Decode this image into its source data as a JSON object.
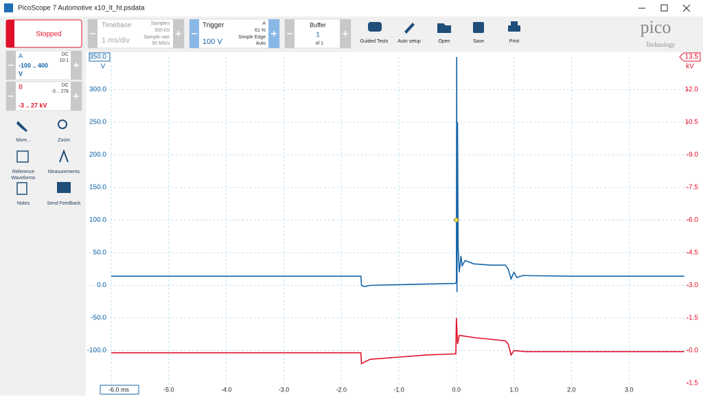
{
  "window": {
    "title": "PicoScope 7 Automotive x10_lt_ht.psdata"
  },
  "toolbar": {
    "status": "Stopped",
    "timebase": {
      "label": "Timebase",
      "value": "1 ms/div",
      "samples_label": "Samples",
      "samples": "500 kS",
      "rate_label": "Sample rate",
      "rate": "50 MS/s"
    },
    "trigger": {
      "label": "Trigger",
      "level": "100 V",
      "channel": "A",
      "position": "61 %",
      "type": "Simple Edge",
      "mode": "Auto"
    },
    "buffer": {
      "label": "Buffer",
      "current": "1",
      "total": "of 1"
    },
    "buttons": [
      "Guided Tests",
      "Auto setup",
      "Open",
      "Save",
      "Print"
    ],
    "logo": {
      "name": "pico",
      "tagline": "Technology"
    }
  },
  "channels": [
    {
      "name": "A",
      "coupling": "DC",
      "probe": "10:1",
      "range": "-100 .. 400",
      "unit": "V"
    },
    {
      "name": "B",
      "coupling": "DC",
      "probe": "-3 .. 27k",
      "range": "-3 .. 27 kV"
    }
  ],
  "tools": [
    [
      "More..."
    ],
    [
      "Zoom"
    ],
    [
      "Reference",
      "Waveforms"
    ],
    [
      "Measurements"
    ],
    [
      "Notes"
    ],
    [
      "Send Feedback"
    ]
  ],
  "chart_data": {
    "type": "line",
    "xlim": [
      -6,
      4
    ],
    "xticks": [
      {
        "value": -6,
        "label": "-6.0 ms"
      },
      {
        "value": -5,
        "label": "-5.0"
      },
      {
        "value": -4,
        "label": "-4.0"
      },
      {
        "value": -3,
        "label": "-3.0"
      },
      {
        "value": -2,
        "label": "-2.0"
      },
      {
        "value": -1,
        "label": "-1.0"
      },
      {
        "value": 0,
        "label": "0.0"
      },
      {
        "value": 1,
        "label": "1.0"
      },
      {
        "value": 2,
        "label": "2.0"
      },
      {
        "value": 3,
        "label": "3.0"
      }
    ],
    "ylabel": "V",
    "ylim": [
      -150,
      350
    ],
    "yticks": [
      {
        "value": -100,
        "label": "-100.0"
      },
      {
        "value": -50,
        "label": "-50.0"
      },
      {
        "value": 0,
        "label": "0.0"
      },
      {
        "value": 50,
        "label": "50.0"
      },
      {
        "value": 100,
        "label": "100.0"
      },
      {
        "value": 150,
        "label": "150.0"
      },
      {
        "value": 200,
        "label": "200.0"
      },
      {
        "value": 250,
        "label": "250.0"
      },
      {
        "value": 300,
        "label": "300.0"
      },
      {
        "value": 350,
        "label": "350.0"
      }
    ],
    "y2label": "kV",
    "y2lim": [
      -1.5,
      13.5
    ],
    "y2ticks": [
      -1.5,
      {
        "value": 0,
        "label": "0.0"
      },
      1.5,
      {
        "value": 3,
        "label": "3.0"
      },
      4.5,
      {
        "value": 6,
        "label": "6.0"
      },
      7.5,
      {
        "value": 9,
        "label": "9.0"
      },
      10.5,
      {
        "value": 12,
        "label": "12.0"
      },
      13.5
    ],
    "grid": true,
    "trigger_point": {
      "x": 0,
      "y": 100,
      "color": "#f5e23a"
    },
    "series": [
      {
        "color": "#1565a8",
        "x": [
          -6,
          -1.66,
          -1.65,
          -1.6,
          -1.5,
          -1.0,
          -0.5,
          -0.02,
          0,
          0.005,
          0.01,
          0.02,
          0.03,
          0.05,
          0.08,
          0.1,
          0.15,
          0.3,
          0.6,
          0.85,
          0.9,
          0.95,
          1.0,
          1.05,
          1.15,
          2,
          3.96
        ],
        "values": [
          14,
          14,
          0,
          -2,
          0,
          1,
          2,
          3,
          5,
          350,
          -10,
          250,
          60,
          20,
          45,
          30,
          38,
          33,
          31,
          31,
          25,
          10,
          20,
          12,
          15,
          14,
          14
        ]
      },
      {
        "color": "#e0102a",
        "axis": "y2",
        "x": [
          -6,
          -1.66,
          -1.65,
          -1.5,
          -1.0,
          -0.5,
          -0.01,
          0,
          0.02,
          0.05,
          0.3,
          0.85,
          0.9,
          0.95,
          1.0,
          1.2,
          2,
          3.96
        ],
        "values": [
          -0.1,
          -0.1,
          -0.6,
          -0.4,
          -0.3,
          -0.2,
          -0.15,
          1.5,
          0.3,
          0.7,
          0.6,
          0.45,
          0.3,
          -0.2,
          0.0,
          -0.05,
          -0.05,
          -0.05
        ]
      }
    ]
  }
}
